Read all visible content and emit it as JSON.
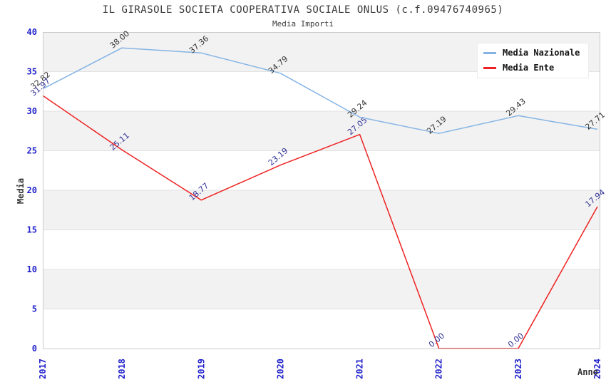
{
  "title": "IL GIRASOLE SOCIETA COOPERATIVA SOCIALE ONLUS (c.f.09476740965)",
  "subtitle": "Media Importi",
  "chart_data": {
    "type": "line",
    "x": [
      "2017",
      "2018",
      "2019",
      "2020",
      "2021",
      "2022",
      "2023",
      "2024"
    ],
    "xlabel": "Anno",
    "ylabel": "Media",
    "ylim": [
      0,
      40
    ],
    "ytick_step": 5,
    "grid": "horizontal-bands",
    "legend_position": "top-right",
    "series": [
      {
        "name": "Media Nazionale",
        "color": "#85b4e4",
        "label_color": "#333333",
        "values": [
          32.82,
          38.0,
          37.36,
          34.79,
          29.24,
          27.19,
          29.43,
          27.71
        ],
        "labels": [
          "32.82",
          "38.00",
          "37.36",
          "34.79",
          "29.24",
          "27.19",
          "29.43",
          "27.71"
        ]
      },
      {
        "name": "Media Ente",
        "color": "#ee2222",
        "label_color": "#333399",
        "values": [
          31.97,
          25.11,
          18.77,
          23.19,
          27.05,
          0.0,
          0.0,
          17.94
        ],
        "labels": [
          "31.97",
          "25.11",
          "18.77",
          "23.19",
          "27.05",
          "0.00",
          "0.00",
          "17.94"
        ]
      }
    ]
  },
  "colors": {
    "axis_tick": "#2222cc",
    "band": "#f2f2f2",
    "gridline": "#e2e2e2",
    "plot_border": "#cccccc",
    "text": "#333333",
    "background": "#ffffff"
  }
}
